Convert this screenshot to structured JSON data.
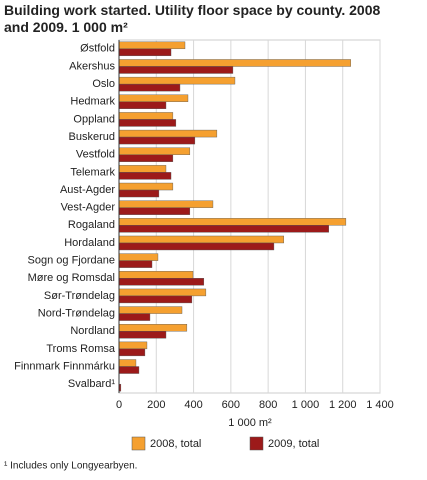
{
  "chart_data": {
    "type": "barh",
    "title": "Building work started. Utility floor space by county. 2008 and 2009. 1 000 m²",
    "x_label": "1 000 m²",
    "footnote": "¹ Includes only Longyearbyen.",
    "categories": [
      "Østfold",
      "Akershus",
      "Oslo",
      "Hedmark",
      "Oppland",
      "Buskerud",
      "Vestfold",
      "Telemark",
      "Aust-Agder",
      "Vest-Agder",
      "Rogaland",
      "Hordaland",
      "Sogn og Fjordane",
      "Møre og Romsdal",
      "Sør-Trøndelag",
      "Nord-Trøndelag",
      "Nordland",
      "Troms Romsa",
      "Finnmark Finnmárku",
      "Svalbard¹"
    ],
    "series": [
      {
        "name": "2008, total",
        "color": "#f5a030",
        "values": [
          354,
          1243,
          622,
          370,
          289,
          525,
          380,
          252,
          289,
          504,
          1217,
          884,
          209,
          397,
          466,
          338,
          364,
          150,
          91,
          0
        ]
      },
      {
        "name": "2009, total",
        "color": "#9c1a1a",
        "values": [
          279,
          611,
          327,
          252,
          305,
          407,
          289,
          279,
          214,
          380,
          1125,
          831,
          177,
          455,
          391,
          166,
          252,
          139,
          107,
          10
        ]
      }
    ],
    "xlim": [
      0,
      1400
    ],
    "xticks": [
      0,
      200,
      400,
      600,
      800,
      {
        "value": 1000,
        "label": "1 000"
      },
      {
        "value": 1200,
        "label": "1 200"
      },
      {
        "value": 1400,
        "label": "1 400"
      }
    ],
    "grid": true,
    "legend": "bottom"
  }
}
